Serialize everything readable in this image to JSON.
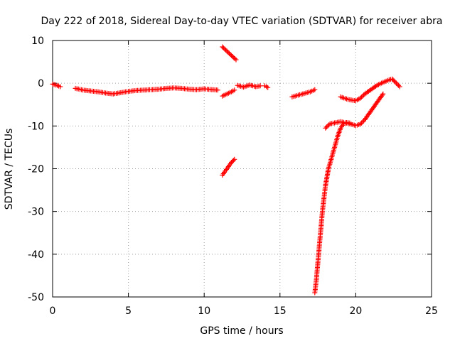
{
  "chart_data": {
    "type": "scatter",
    "title": "Day 222 of 2018, Sidereal Day-to-day VTEC variation (SDTVAR) for receiver abra",
    "xlabel": "GPS time / hours",
    "ylabel": "SDTVAR / TECUs",
    "xlim": [
      0,
      25
    ],
    "ylim": [
      -50,
      10
    ],
    "xticks": [
      0,
      5,
      10,
      15,
      20,
      25
    ],
    "yticks": [
      -50,
      -40,
      -30,
      -20,
      -10,
      0,
      10
    ],
    "xtick_labels": [
      "0",
      "5",
      "10",
      "15",
      "20",
      "25"
    ],
    "ytick_labels": [
      "-50",
      "-40",
      "-30",
      "-20",
      "-10",
      "0",
      "10"
    ],
    "grid": true,
    "marker": "+",
    "color": "#ff0000",
    "series": [
      {
        "name": "SDTVAR",
        "segments": [
          [
            [
              0.0,
              -0.2
            ],
            [
              0.3,
              -0.5
            ],
            [
              0.5,
              -0.8
            ]
          ],
          [
            [
              1.5,
              -1.2
            ],
            [
              2.0,
              -1.6
            ],
            [
              2.5,
              -1.8
            ],
            [
              3.0,
              -2.0
            ],
            [
              3.5,
              -2.3
            ],
            [
              4.0,
              -2.5
            ],
            [
              4.5,
              -2.2
            ],
            [
              5.0,
              -1.9
            ],
            [
              5.5,
              -1.7
            ],
            [
              6.0,
              -1.6
            ],
            [
              6.5,
              -1.5
            ],
            [
              7.0,
              -1.4
            ],
            [
              7.5,
              -1.2
            ],
            [
              8.0,
              -1.1
            ],
            [
              8.5,
              -1.2
            ],
            [
              9.0,
              -1.4
            ],
            [
              9.5,
              -1.5
            ],
            [
              10.0,
              -1.3
            ],
            [
              10.5,
              -1.5
            ],
            [
              10.9,
              -1.6
            ]
          ],
          [
            [
              11.2,
              8.5
            ],
            [
              11.5,
              7.5
            ],
            [
              11.8,
              6.5
            ],
            [
              12.1,
              5.5
            ]
          ],
          [
            [
              11.2,
              -21.5
            ],
            [
              11.4,
              -20.5
            ],
            [
              11.6,
              -19.5
            ],
            [
              11.8,
              -18.5
            ],
            [
              12.0,
              -17.8
            ]
          ],
          [
            [
              11.2,
              -3.0
            ],
            [
              11.5,
              -2.5
            ],
            [
              11.8,
              -2.0
            ],
            [
              12.0,
              -1.6
            ]
          ],
          [
            [
              12.2,
              -0.5
            ],
            [
              12.6,
              -0.9
            ],
            [
              13.0,
              -0.4
            ],
            [
              13.4,
              -0.8
            ],
            [
              13.7,
              -0.6
            ]
          ],
          [
            [
              14.0,
              -0.6
            ],
            [
              14.2,
              -1.0
            ]
          ],
          [
            [
              15.8,
              -3.2
            ],
            [
              16.2,
              -2.8
            ],
            [
              16.6,
              -2.4
            ],
            [
              17.0,
              -2.0
            ],
            [
              17.3,
              -1.5
            ]
          ],
          [
            [
              17.3,
              -49.0
            ],
            [
              17.4,
              -46.0
            ],
            [
              17.5,
              -42.0
            ],
            [
              17.6,
              -38.0
            ],
            [
              17.7,
              -34.0
            ],
            [
              17.8,
              -30.0
            ],
            [
              17.9,
              -27.0
            ],
            [
              18.0,
              -24.0
            ],
            [
              18.1,
              -22.0
            ],
            [
              18.2,
              -20.0
            ],
            [
              18.4,
              -17.5
            ],
            [
              18.6,
              -15.0
            ],
            [
              18.8,
              -12.5
            ],
            [
              19.0,
              -10.5
            ],
            [
              19.2,
              -9.5
            ],
            [
              19.4,
              -9.2
            ],
            [
              19.6,
              -9.3
            ]
          ],
          [
            [
              18.0,
              -10.5
            ],
            [
              18.3,
              -9.5
            ],
            [
              18.7,
              -9.2
            ],
            [
              19.0,
              -9.0
            ],
            [
              19.5,
              -9.4
            ],
            [
              20.0,
              -9.9
            ],
            [
              20.3,
              -9.6
            ],
            [
              20.6,
              -8.5
            ],
            [
              21.0,
              -6.5
            ],
            [
              21.4,
              -4.5
            ],
            [
              21.8,
              -2.5
            ]
          ],
          [
            [
              19.0,
              -3.2
            ],
            [
              19.5,
              -3.8
            ],
            [
              20.0,
              -4.1
            ],
            [
              20.3,
              -3.5
            ],
            [
              20.6,
              -2.5
            ],
            [
              21.0,
              -1.5
            ],
            [
              21.4,
              -0.5
            ],
            [
              21.8,
              0.2
            ],
            [
              22.2,
              0.8
            ],
            [
              22.4,
              1.0
            ],
            [
              22.6,
              0.3
            ],
            [
              22.9,
              -0.8
            ]
          ]
        ]
      }
    ]
  }
}
